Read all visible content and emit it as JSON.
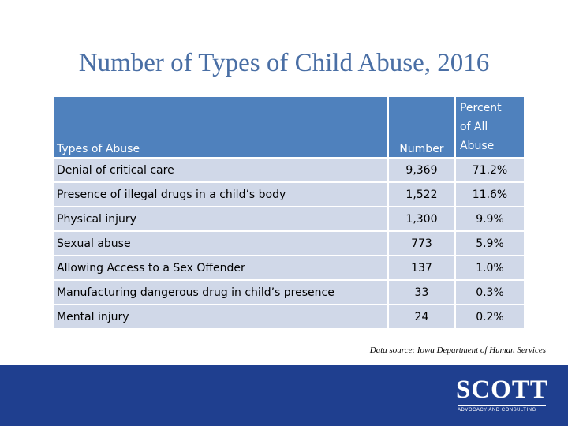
{
  "slide": {
    "title": "Number of Types of Child Abuse, 2016",
    "source": "Data source: Iowa Department of Human Services"
  },
  "table": {
    "headers": {
      "type": "Types of Abuse",
      "number": "Number",
      "percent_lines": [
        "Percent",
        "of All",
        "Abuse"
      ]
    },
    "rows": [
      {
        "type": "Denial of critical care",
        "number": "9,369",
        "percent": "71.2%"
      },
      {
        "type": "Presence of illegal drugs in a child’s body",
        "number": "1,522",
        "percent": "11.6%"
      },
      {
        "type": "Physical injury",
        "number": "1,300",
        "percent": "9.9%"
      },
      {
        "type": "Sexual abuse",
        "number": "773",
        "percent": "5.9%"
      },
      {
        "type": "Allowing Access to a Sex Offender",
        "number": "137",
        "percent": "1.0%"
      },
      {
        "type": "Manufacturing dangerous drug in child’s presence",
        "number": "33",
        "percent": "0.3%"
      },
      {
        "type": "Mental injury",
        "number": "24",
        "percent": "0.2%"
      }
    ]
  },
  "footer": {
    "logo": "SCOTT",
    "tagline": "ADVOCACY AND CONSULTING",
    "background": "#1f3f8f"
  }
}
